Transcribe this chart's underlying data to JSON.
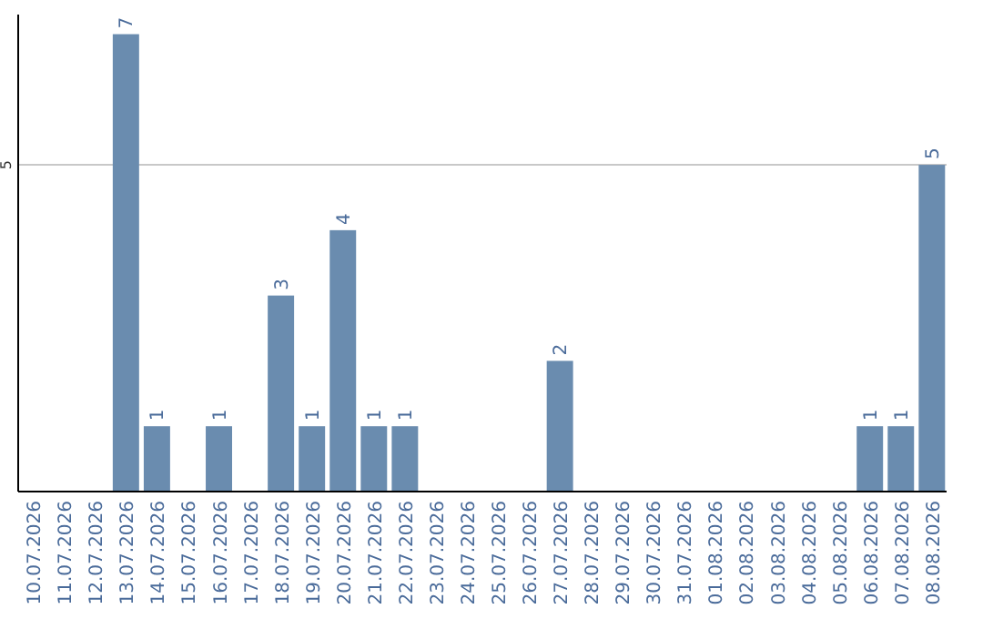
{
  "chart_data": {
    "type": "bar",
    "categories": [
      "10.07.2026",
      "11.07.2026",
      "12.07.2026",
      "13.07.2026",
      "14.07.2026",
      "15.07.2026",
      "16.07.2026",
      "17.07.2026",
      "18.07.2026",
      "19.07.2026",
      "20.07.2026",
      "21.07.2026",
      "22.07.2026",
      "23.07.2026",
      "24.07.2026",
      "25.07.2026",
      "26.07.2026",
      "27.07.2026",
      "28.07.2026",
      "29.07.2026",
      "30.07.2026",
      "31.07.2026",
      "01.08.2026",
      "02.08.2026",
      "03.08.2026",
      "04.08.2026",
      "05.08.2026",
      "06.08.2026",
      "07.08.2026",
      "08.08.2026"
    ],
    "values": [
      0,
      0,
      0,
      7,
      1,
      0,
      1,
      0,
      3,
      1,
      4,
      1,
      1,
      0,
      0,
      0,
      0,
      2,
      0,
      0,
      0,
      0,
      0,
      0,
      0,
      0,
      0,
      1,
      1,
      5
    ],
    "value_labels": [
      null,
      null,
      null,
      "7",
      "1",
      null,
      "1",
      null,
      "3",
      "1",
      "4",
      "1",
      "1",
      null,
      null,
      null,
      null,
      "2",
      null,
      null,
      null,
      null,
      null,
      null,
      null,
      null,
      null,
      "1",
      "1",
      "5"
    ],
    "color": "#6a8caf",
    "ylim": [
      0,
      7.3
    ],
    "yticks": [
      5
    ],
    "grid": "y"
  }
}
